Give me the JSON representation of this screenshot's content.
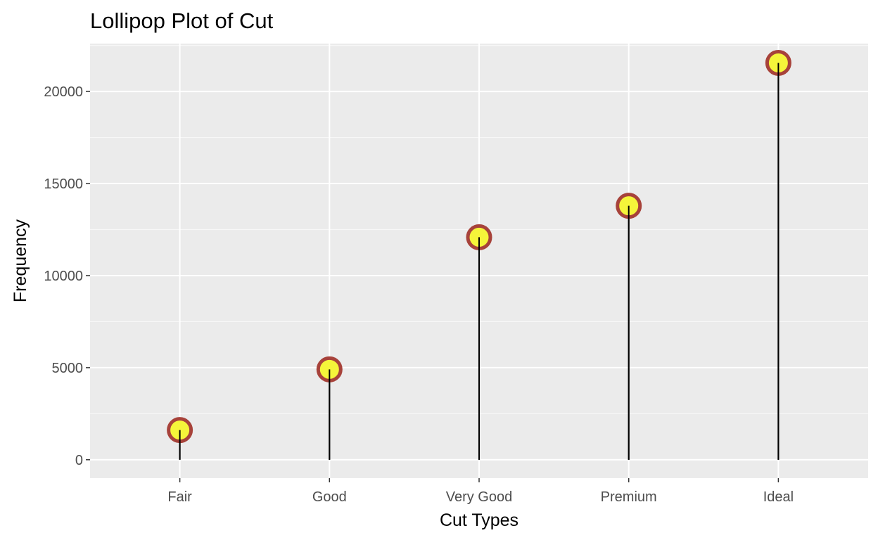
{
  "chart_data": {
    "type": "lollipop",
    "title": "Lollipop Plot of Cut",
    "xlabel": "Cut Types",
    "ylabel": "Frequency",
    "categories": [
      "Fair",
      "Good",
      "Very Good",
      "Premium",
      "Ideal"
    ],
    "values": [
      1610,
      4906,
      12082,
      13791,
      21551
    ],
    "ylim": [
      -1000,
      22600
    ],
    "yticks": [
      0,
      5000,
      10000,
      15000,
      20000
    ],
    "ytick_labels": [
      "0",
      "5000",
      "10000",
      "15000",
      "20000"
    ],
    "grid": true,
    "legend": "none",
    "colors": {
      "panel_background": "#ebebeb",
      "grid_major": "#ffffff",
      "grid_minor": "#f7f7f7",
      "stem": "#000000",
      "point_fill": "#f5f53a",
      "point_outline": "#a7423a",
      "tick_text": "#4d4d4d"
    }
  }
}
